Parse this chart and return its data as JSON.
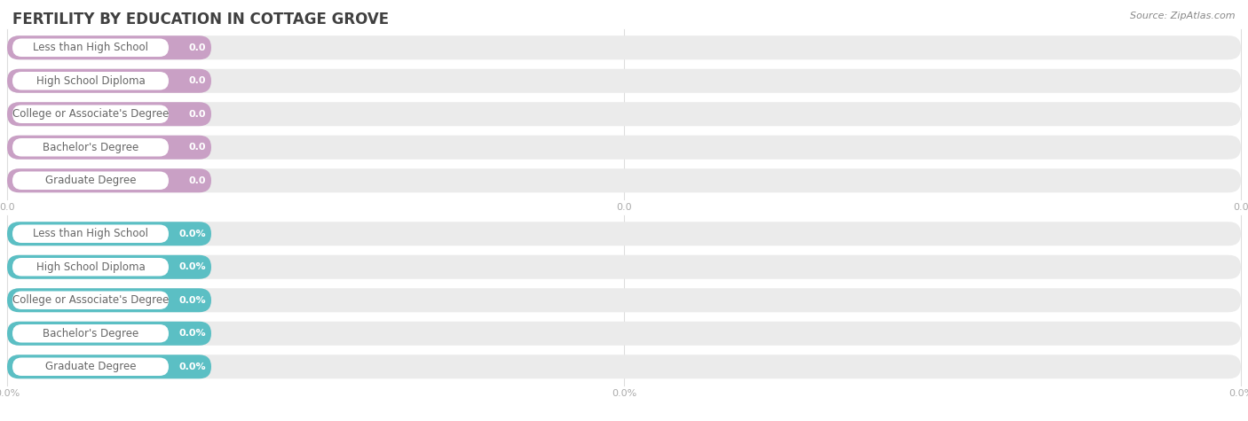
{
  "title": "FERTILITY BY EDUCATION IN COTTAGE GROVE",
  "source_text": "Source: ZipAtlas.com",
  "categories": [
    "Less than High School",
    "High School Diploma",
    "College or Associate's Degree",
    "Bachelor's Degree",
    "Graduate Degree"
  ],
  "top_values": [
    0.0,
    0.0,
    0.0,
    0.0,
    0.0
  ],
  "bottom_values": [
    0.0,
    0.0,
    0.0,
    0.0,
    0.0
  ],
  "top_color": "#c9a0c5",
  "top_bg_color": "#e8d0e5",
  "bottom_color": "#5bbfc4",
  "bottom_bg_color": "#b8e0e3",
  "bar_track_color": "#ebebeb",
  "bg_color": "#ffffff",
  "title_color": "#404040",
  "label_text_color": "#666666",
  "value_text_color": "#ffffff",
  "tick_color": "#aaaaaa",
  "grid_color": "#dddddd",
  "source_color": "#888888",
  "title_fontsize": 12,
  "label_fontsize": 8.5,
  "value_fontsize": 8,
  "tick_fontsize": 8,
  "source_fontsize": 8
}
